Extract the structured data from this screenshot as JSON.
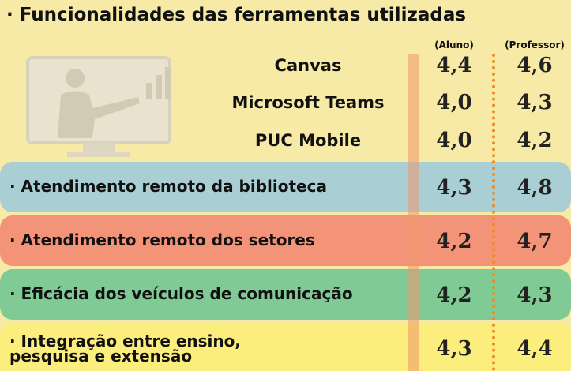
{
  "title": "· Funcionalidades das ferramentas utilizadas",
  "columns": [
    "(Aluno)",
    "(Professor)"
  ],
  "tools": [
    {
      "label": "Canvas",
      "aluno": "4,4",
      "professor": "4,6"
    },
    {
      "label": "Microsoft Teams",
      "aluno": "4,0",
      "professor": "4,3"
    },
    {
      "label": "PUC Mobile",
      "aluno": "4,0",
      "professor": "4,2"
    }
  ],
  "rows": [
    {
      "label": "· Atendimento remoto da biblioteca",
      "aluno": "4,3",
      "professor": "4,8"
    },
    {
      "label": "· Atendimento remoto dos setores",
      "aluno": "4,2",
      "professor": "4,7"
    },
    {
      "label": "· Eficácia dos veículos de comunicação",
      "aluno": "4,2",
      "professor": "4,3"
    },
    {
      "label": "· Integração entre ensino, pesquisa e extensão",
      "aluno": "4,3",
      "professor": "4,4"
    }
  ]
}
